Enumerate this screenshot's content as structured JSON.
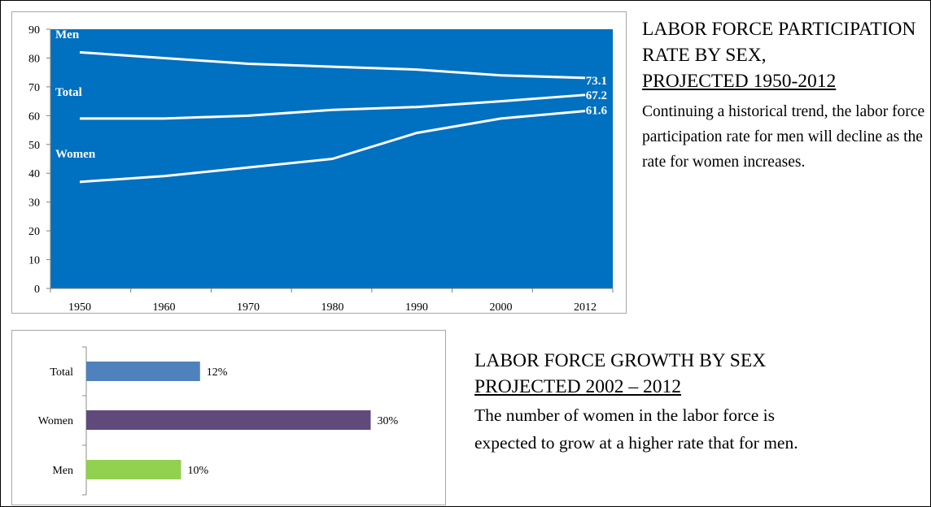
{
  "colors": {
    "plot_background": "#0070C0",
    "line_color": "#FFFFFF",
    "bar_total": "#4F81BD",
    "bar_women": "#604A7B",
    "bar_men": "#92D050"
  },
  "top_panel": {
    "heading_line1": "LABOR FORCE PARTICIPATION RATE BY SEX,",
    "heading_line2": "PROJECTED 1950-2012",
    "body": "Continuing a historical trend, the labor force participation rate for men will decline as the rate for women increases."
  },
  "bottom_panel": {
    "heading_line1": "LABOR FORCE GROWTH BY SEX",
    "heading_line2": "PROJECTED 2002 – 2012",
    "body": "The number of women in the labor force is expected to grow at a higher rate that for men."
  },
  "chart_data": [
    {
      "type": "line",
      "title": "",
      "xlabel": "",
      "ylabel": "",
      "categories": [
        "1950",
        "1960",
        "1970",
        "1980",
        "1990",
        "2000",
        "2012"
      ],
      "ylim": [
        0,
        90
      ],
      "yticks": [
        0,
        10,
        20,
        30,
        40,
        50,
        60,
        70,
        80,
        90
      ],
      "grid": false,
      "legend": "none",
      "series": [
        {
          "name": "Men",
          "values": [
            82,
            80,
            78,
            77,
            76,
            74,
            73.1
          ],
          "end_label": "73.1"
        },
        {
          "name": "Total",
          "values": [
            59,
            59,
            60,
            62,
            63,
            65,
            67.2
          ],
          "end_label": "67.2"
        },
        {
          "name": "Women",
          "values": [
            37,
            39,
            42,
            45,
            54,
            59,
            61.6
          ],
          "end_label": "61.6"
        }
      ]
    },
    {
      "type": "bar",
      "orientation": "horizontal",
      "title": "",
      "xlabel": "",
      "ylabel": "",
      "categories": [
        "Total",
        "Women",
        "Men"
      ],
      "values": [
        12,
        30,
        10
      ],
      "data_labels": [
        "12%",
        "30%",
        "10%"
      ],
      "grid": false,
      "legend": "none"
    }
  ]
}
